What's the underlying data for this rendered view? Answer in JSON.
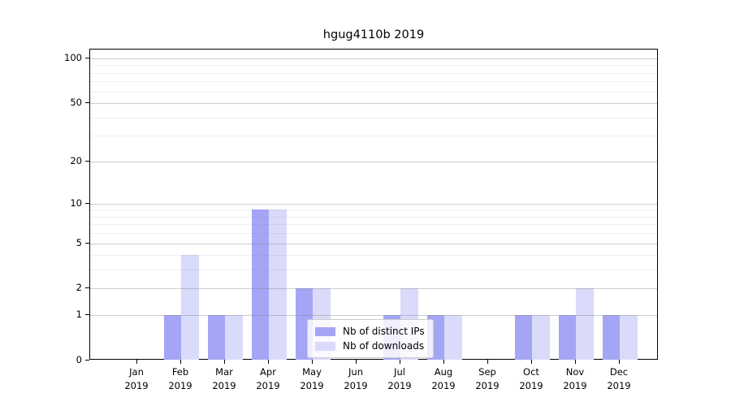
{
  "title": "hgug4110b 2019",
  "chart_data": {
    "type": "bar",
    "title": "hgug4110b 2019",
    "y_scale": "log1p",
    "grid": true,
    "categories": [
      "Jan",
      "Feb",
      "Mar",
      "Apr",
      "May",
      "Jun",
      "Jul",
      "Aug",
      "Sep",
      "Oct",
      "Nov",
      "Dec"
    ],
    "category_sublabel": "2019",
    "series": [
      {
        "name": "Nb of distinct IPs",
        "color": "#a5a5f6",
        "values": [
          0,
          1,
          1,
          9,
          2,
          0,
          1,
          1,
          0,
          1,
          1,
          1
        ]
      },
      {
        "name": "Nb of downloads",
        "color": "#dadafa",
        "values": [
          0,
          4,
          1,
          9,
          2,
          0,
          2,
          1,
          0,
          1,
          2,
          1
        ]
      }
    ],
    "y_ticks": [
      0,
      1,
      2,
      5,
      10,
      20,
      50,
      100
    ],
    "y_minor_gridlines": [
      3,
      4,
      6,
      7,
      8,
      9,
      30,
      40,
      60,
      70,
      80,
      90
    ],
    "ylim": [
      0,
      115
    ],
    "legend": {
      "position": "lower-center"
    }
  },
  "colors": {
    "background": "#ffffff",
    "axis": "#000000",
    "major_grid": "#cfcfcf",
    "minor_grid": "#efefef",
    "bar_distinct_ips": "#a5a5f6",
    "bar_downloads": "#dadafa"
  }
}
